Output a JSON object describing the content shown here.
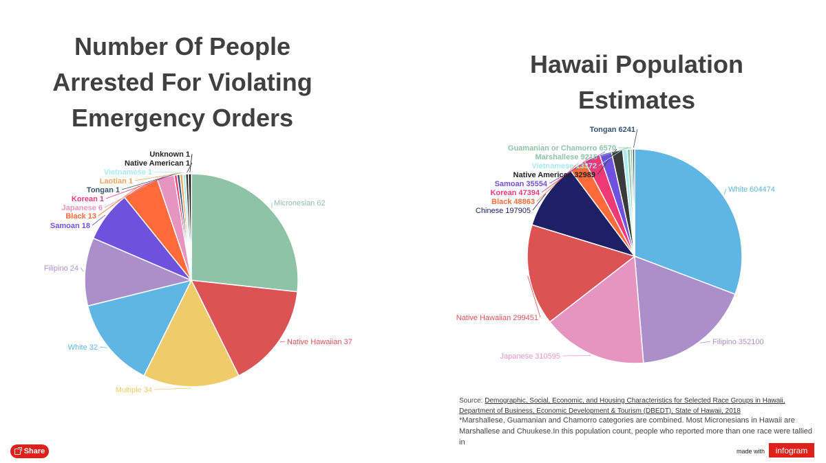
{
  "colors": {
    "Micronesian": "#8ec3a7",
    "Native Hawaiian": "#dc5356",
    "Multiple": "#f0cb69",
    "White": "#5fb6e5",
    "Filipino": "#ab8fcb",
    "Samoan": "#6e51dd",
    "Black": "#ff6b3b",
    "Japanese": "#e695c0",
    "Korean": "#f03a78",
    "Tongan": "#38536e",
    "Laotian": "#f0a55a",
    "Vietnamese": "#a6eaf2",
    "Native American": "#3a3a3a",
    "Unknown": "#111111",
    "Chinese": "#1e2066",
    "Marshallese": "#8ec3a7",
    "Guamanian or Chamorro": "#8ec3a7"
  },
  "chart_data": [
    {
      "type": "pie",
      "title": "Number Of People Arrested For Violating Emergency Orders",
      "labels": [
        "Micronesian",
        "Native Hawaiian",
        "Multiple",
        "White",
        "Filipino",
        "Samoan",
        "Black",
        "Japanese",
        "Korean",
        "Tongan",
        "Laotian",
        "Vietnamese",
        "Native American",
        "Unknown"
      ],
      "values": [
        62,
        37,
        34,
        32,
        24,
        18,
        13,
        6,
        1,
        1,
        1,
        1,
        1,
        1
      ]
    },
    {
      "type": "pie",
      "title": "Hawaii Population Estimates",
      "labels": [
        "White",
        "Filipino",
        "Japanese",
        "Native Hawaiian",
        "Chinese",
        "Black",
        "Korean",
        "Samoan",
        "Native American",
        "Vietnamese",
        "Marshallese",
        "Guamanian or Chamorro",
        "Tongan"
      ],
      "values": [
        604474,
        352100,
        310595,
        299451,
        197905,
        48863,
        47394,
        35554,
        32989,
        13372,
        9215,
        6570,
        6241
      ]
    }
  ],
  "source": {
    "prefix": "Source:",
    "link": "Demographic, Social, Economic, and Housing Characteristics for Selected Race Groups in Hawaii, Department of Business, Economic Development & Tourism (DBEDT), State of Hawaii, 2018",
    "note": "*Marshallese, Guamanian and Chamorro categories are combined. Most Micronesians in Hawaii are Marshallese and Chuukese.In this population count, people who reported more than one race were tallied in"
  },
  "share_label": "Share",
  "made_with": "made with",
  "brand": "infogram"
}
